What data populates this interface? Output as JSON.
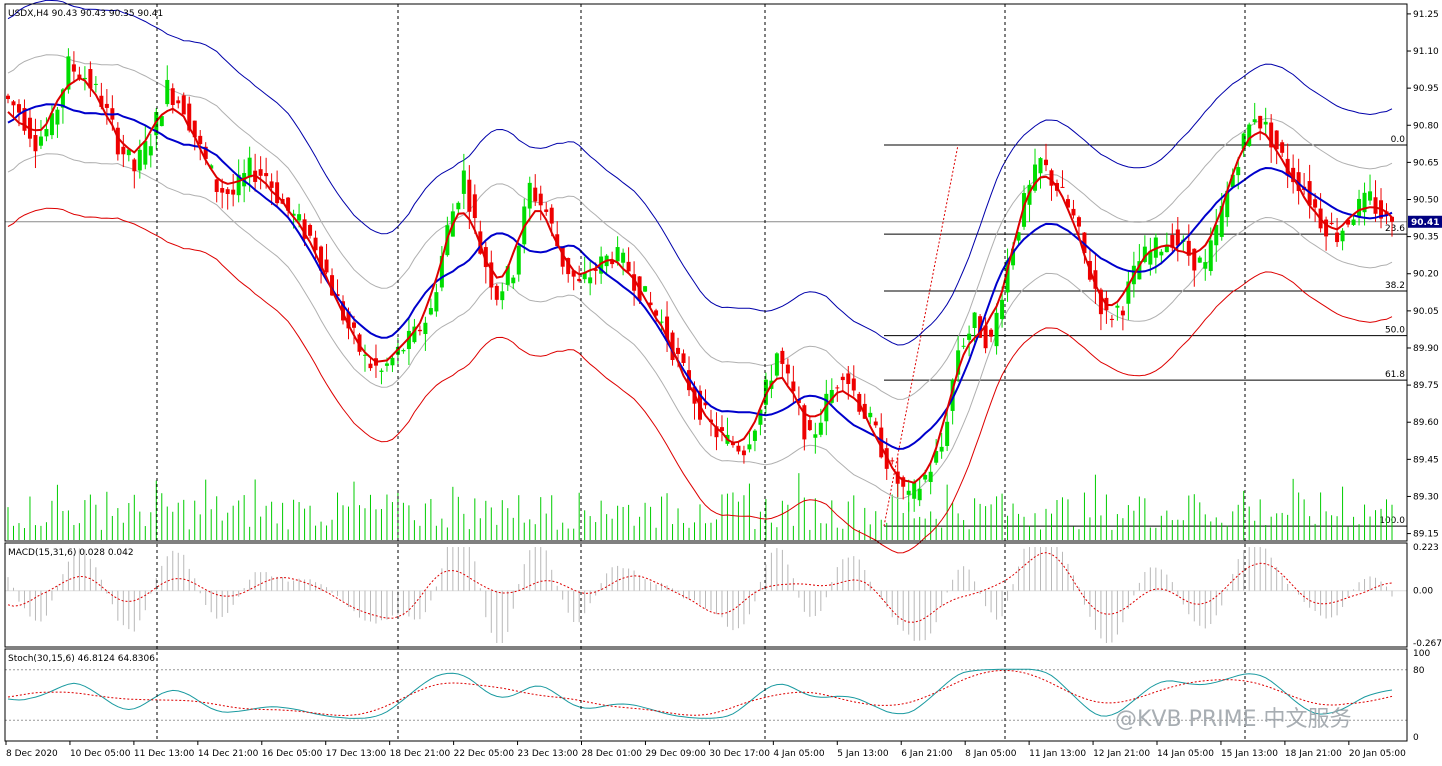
{
  "header": {
    "symbol_line": "USDX,H4  90.43 90.43 90.35 90.41",
    "macd_label": "MACD(15,31,6) 0.028 0.042",
    "stoch_label": "Stoch(30,15,6) 46.8124 64.8306"
  },
  "watermark": "@KVB PRIME 中文服务",
  "colors": {
    "bull": "#00dd00",
    "bear": "#ee0000",
    "ma_fast": "#dd0000",
    "ma_mid": "#0000cc",
    "band_outer_top": "#0000aa",
    "band_outer_bottom": "#dd0000",
    "band_inner": "#b0b0b0",
    "volume": "#00cc00",
    "grid": "#000000",
    "macd_hist": "#b8b8b8",
    "macd_signal": "#dd0000",
    "stoch_main": "#1a9aa0",
    "stoch_signal": "#dd0000",
    "current_price_bg": "#000080"
  },
  "price_axis": {
    "ticks": [
      "91.25",
      "91.10",
      "90.95",
      "90.80",
      "90.65",
      "90.50",
      "90.35",
      "90.20",
      "90.05",
      "89.90",
      "89.75",
      "89.60",
      "89.45",
      "89.30",
      "89.15"
    ],
    "current_price": "90.41"
  },
  "fibonacci": {
    "levels": [
      {
        "label": "0.0",
        "price": 90.72
      },
      {
        "label": "23.6",
        "price": 90.36
      },
      {
        "label": "38.2",
        "price": 90.13
      },
      {
        "label": "50.0",
        "price": 89.95
      },
      {
        "label": "61.8",
        "price": 89.77
      },
      {
        "label": "100.0",
        "price": 89.18
      }
    ]
  },
  "macd_axis": {
    "ticks": [
      "0.223",
      "0.00",
      "-0.267"
    ]
  },
  "stoch_axis": {
    "ticks": [
      "100",
      "80",
      "0"
    ]
  },
  "time_axis": {
    "labels": [
      "8 Dec 2020",
      "10 Dec 05:00",
      "11 Dec 13:00",
      "14 Dec 21:00",
      "16 Dec 05:00",
      "17 Dec 13:00",
      "18 Dec 21:00",
      "22 Dec 05:00",
      "23 Dec 13:00",
      "28 Dec 01:00",
      "29 Dec 09:00",
      "30 Dec 17:00",
      "4 Jan 05:00",
      "5 Jan 13:00",
      "6 Jan 21:00",
      "8 Jan 05:00",
      "11 Jan 13:00",
      "12 Jan 21:00",
      "14 Jan 05:00",
      "15 Jan 13:00",
      "18 Jan 21:00",
      "20 Jan 05:00"
    ]
  },
  "chart_data": {
    "type": "candlestick",
    "symbol": "USDX",
    "timeframe": "H4",
    "ylim": [
      89.1,
      91.3
    ],
    "close_path": [
      90.92,
      90.86,
      90.74,
      90.8,
      91.04,
      91.0,
      90.9,
      90.73,
      90.62,
      90.75,
      90.95,
      90.88,
      90.7,
      90.55,
      90.52,
      90.62,
      90.6,
      90.48,
      90.4,
      90.32,
      90.14,
      89.98,
      89.85,
      89.8,
      89.88,
      89.95,
      90.05,
      90.38,
      90.6,
      90.3,
      90.12,
      90.22,
      90.55,
      90.45,
      90.25,
      90.15,
      90.22,
      90.28,
      90.22,
      90.1,
      90.0,
      89.85,
      89.7,
      89.58,
      89.52,
      89.5,
      89.65,
      89.88,
      89.7,
      89.52,
      89.68,
      89.82,
      89.68,
      89.55,
      89.4,
      89.28,
      89.38,
      89.5,
      89.9,
      90.0,
      89.92,
      90.25,
      90.48,
      90.65,
      90.55,
      90.42,
      90.2,
      90.02,
      90.08,
      90.25,
      90.3,
      90.35,
      90.28,
      90.22,
      90.45,
      90.68,
      90.85,
      90.75,
      90.62,
      90.55,
      90.42,
      90.36,
      90.45,
      90.5,
      90.41
    ],
    "last_bar": {
      "open": 90.43,
      "high": 90.43,
      "low": 90.35,
      "close": 90.41
    },
    "indicators": [
      "Envelopes / bands (blue, red, grey)",
      "Moving averages (red, blue)",
      "Volumes",
      "Fibonacci retracement",
      "MACD(15,31,6)",
      "Stoch(30,15,6)"
    ],
    "macd": {
      "params": "15,31,6",
      "main": 0.028,
      "signal": 0.042,
      "ylim": [
        -0.267,
        0.223
      ]
    },
    "stoch": {
      "params": "30,15,6",
      "main": 46.8124,
      "signal": 64.8306,
      "levels": [
        20,
        80
      ],
      "ylim": [
        0,
        100
      ]
    }
  }
}
